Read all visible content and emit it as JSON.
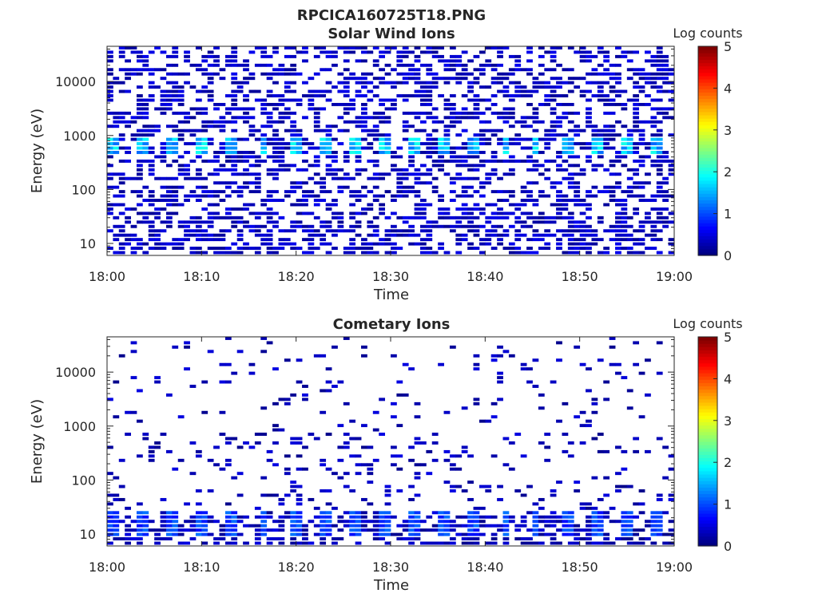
{
  "figure": {
    "title": "RPCICA160725T18.PNG"
  },
  "chart_data": [
    {
      "type": "heatmap",
      "title": "Solar Wind Ions",
      "xlabel": "Time",
      "ylabel": "Energy (eV)",
      "x_ticks": [
        "18:00",
        "18:10",
        "18:20",
        "18:30",
        "18:40",
        "18:50",
        "19:00"
      ],
      "x_range_minutes": [
        0,
        60
      ],
      "y_ticks": [
        "10",
        "100",
        "1000",
        "10000"
      ],
      "y_scale": "log",
      "y_range": [
        6,
        45000
      ],
      "colorbar": {
        "label": "Log counts",
        "range": [
          0,
          5
        ],
        "ticks": [
          "0",
          "1",
          "2",
          "3",
          "4",
          "5"
        ],
        "colormap": "jet"
      },
      "grid": false,
      "peak_band": {
        "energy_range": [
          400,
          900
        ],
        "log_counts_peak": 2.0,
        "period_minutes": 3.2
      },
      "background_log_counts": 0.1
    },
    {
      "type": "heatmap",
      "title": "Cometary Ions",
      "xlabel": "Time",
      "ylabel": "Energy (eV)",
      "x_ticks": [
        "18:00",
        "18:10",
        "18:20",
        "18:30",
        "18:40",
        "18:50",
        "19:00"
      ],
      "x_range_minutes": [
        0,
        60
      ],
      "y_ticks": [
        "10",
        "100",
        "1000",
        "10000"
      ],
      "y_scale": "log",
      "y_range": [
        6,
        45000
      ],
      "colorbar": {
        "label": "Log counts",
        "range": [
          0,
          5
        ],
        "ticks": [
          "0",
          "1",
          "2",
          "3",
          "4",
          "5"
        ],
        "colormap": "jet"
      },
      "grid": false,
      "peak_band": {
        "energy_range": [
          8,
          25
        ],
        "log_counts_peak": 1.2,
        "period_minutes": 3.2
      },
      "background_log_counts": 0.05
    }
  ]
}
